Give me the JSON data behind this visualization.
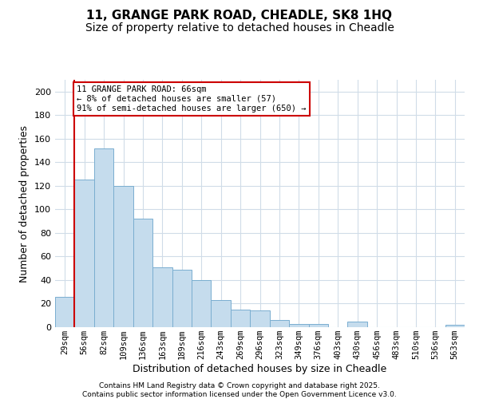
{
  "title": "11, GRANGE PARK ROAD, CHEADLE, SK8 1HQ",
  "subtitle": "Size of property relative to detached houses in Cheadle",
  "xlabel": "Distribution of detached houses by size in Cheadle",
  "ylabel": "Number of detached properties",
  "bar_labels": [
    "29sqm",
    "56sqm",
    "82sqm",
    "109sqm",
    "136sqm",
    "163sqm",
    "189sqm",
    "216sqm",
    "243sqm",
    "269sqm",
    "296sqm",
    "323sqm",
    "349sqm",
    "376sqm",
    "403sqm",
    "430sqm",
    "456sqm",
    "483sqm",
    "510sqm",
    "536sqm",
    "563sqm"
  ],
  "bar_heights": [
    26,
    125,
    152,
    120,
    92,
    51,
    49,
    40,
    23,
    15,
    14,
    6,
    3,
    3,
    0,
    5,
    0,
    0,
    0,
    0,
    2
  ],
  "bar_color": "#c5dced",
  "bar_edge_color": "#7aaed0",
  "grid_color": "#d0dce8",
  "vline_x": 1,
  "vline_color": "#cc0000",
  "annotation_text": "11 GRANGE PARK ROAD: 66sqm\n← 8% of detached houses are smaller (57)\n91% of semi-detached houses are larger (650) →",
  "annotation_box_color": "#ffffff",
  "annotation_box_edge_color": "#cc0000",
  "ylim": [
    0,
    210
  ],
  "yticks": [
    0,
    20,
    40,
    60,
    80,
    100,
    120,
    140,
    160,
    180,
    200
  ],
  "footer_line1": "Contains HM Land Registry data © Crown copyright and database right 2025.",
  "footer_line2": "Contains public sector information licensed under the Open Government Licence v3.0.",
  "background_color": "#ffffff",
  "title_fontsize": 11,
  "subtitle_fontsize": 10
}
